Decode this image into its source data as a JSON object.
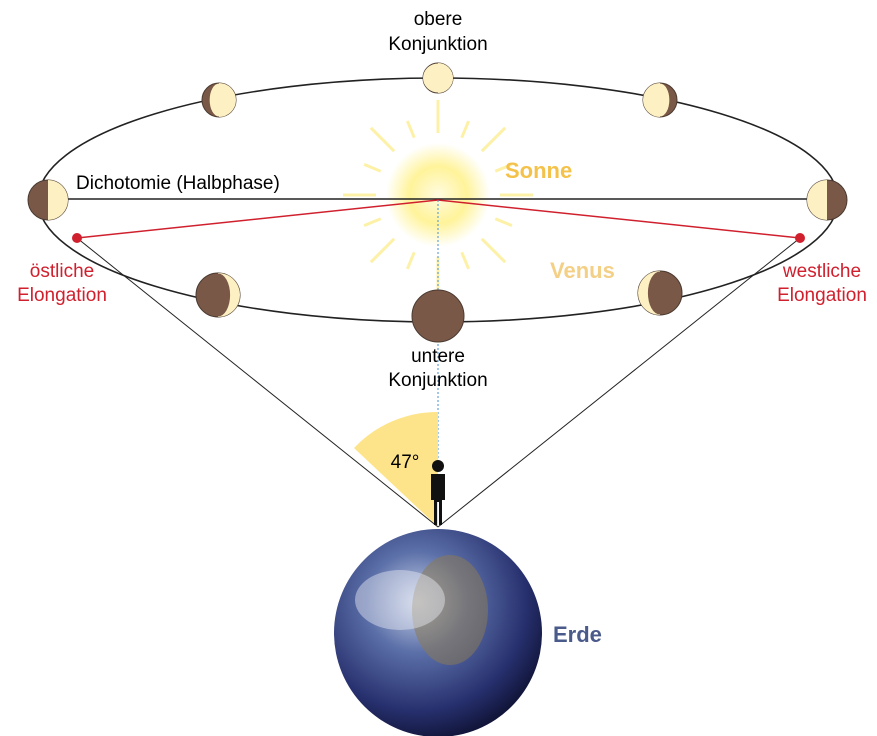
{
  "upper_conjunction": [
    "obere",
    "Konjunktion"
  ],
  "dichotomy": "Dichotomie (Halbphase)",
  "sun": "Sonne",
  "venus": "Venus",
  "eastern_elongation": [
    "östliche",
    "Elongation"
  ],
  "western_elongation": [
    "westliche",
    "Elongation"
  ],
  "lower_conjunction": [
    "untere",
    "Konjunktion"
  ],
  "angle": "47°",
  "earth": "Erde"
}
